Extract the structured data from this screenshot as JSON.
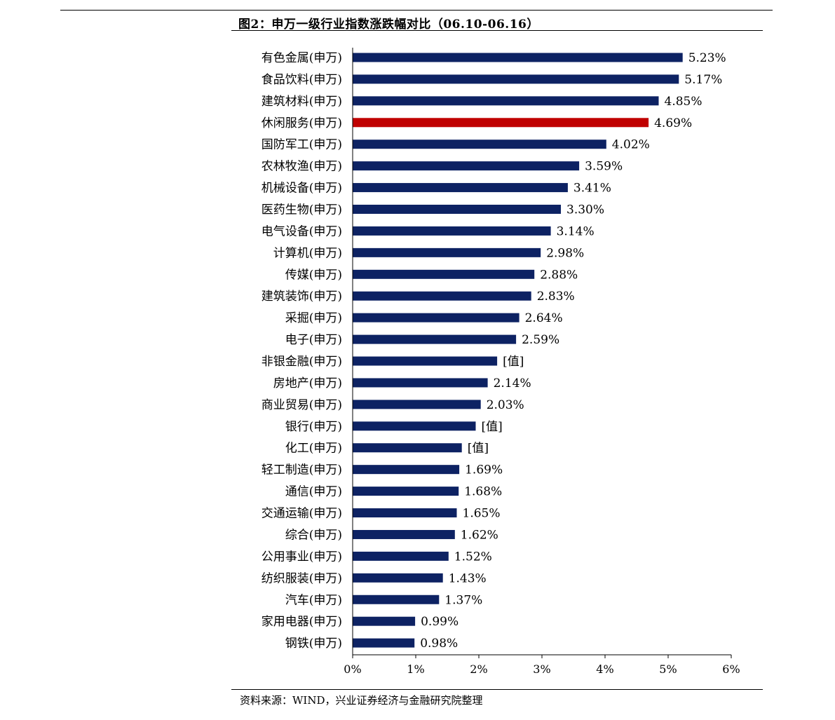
{
  "title": "图2：申万一级行业指数涨跌幅对比（06.10-06.16）",
  "source": "资料来源：WIND，兴业证券经济与金融研究院整理",
  "colors": {
    "bar": "#0d2263",
    "highlight": "#c00000"
  },
  "chart_data": {
    "type": "bar",
    "orientation": "horizontal",
    "title": "图2：申万一级行业指数涨跌幅对比（06.10-06.16）",
    "xlabel": "",
    "ylabel": "",
    "xlim": [
      0,
      6
    ],
    "x_ticks": [
      "0%",
      "1%",
      "2%",
      "3%",
      "4%",
      "5%",
      "6%"
    ],
    "grid": false,
    "highlight_category": "休闲服务(申万)",
    "categories": [
      "有色金属(申万)",
      "食品饮料(申万)",
      "建筑材料(申万)",
      "休闲服务(申万)",
      "国防军工(申万)",
      "农林牧渔(申万)",
      "机械设备(申万)",
      "医药生物(申万)",
      "电气设备(申万)",
      "计算机(申万)",
      "传媒(申万)",
      "建筑装饰(申万)",
      "采掘(申万)",
      "电子(申万)",
      "非银金融(申万)",
      "房地产(申万)",
      "商业贸易(申万)",
      "银行(申万)",
      "化工(申万)",
      "轻工制造(申万)",
      "通信(申万)",
      "交通运输(申万)",
      "综合(申万)",
      "公用事业(申万)",
      "纺织服装(申万)",
      "汽车(申万)",
      "家用电器(申万)",
      "钢铁(申万)"
    ],
    "values": [
      5.23,
      5.17,
      4.85,
      4.69,
      4.02,
      3.59,
      3.41,
      3.3,
      3.14,
      2.98,
      2.88,
      2.83,
      2.64,
      2.59,
      2.29,
      2.14,
      2.03,
      1.95,
      1.73,
      1.69,
      1.68,
      1.65,
      1.62,
      1.52,
      1.43,
      1.37,
      0.99,
      0.98
    ],
    "data_labels": [
      "5.23%",
      "5.17%",
      "4.85%",
      "4.69%",
      "4.02%",
      "3.59%",
      "3.41%",
      "3.30%",
      "3.14%",
      "2.98%",
      "2.88%",
      "2.83%",
      "2.64%",
      "2.59%",
      "[值]",
      "2.14%",
      "2.03%",
      "[值]",
      "[值]",
      "1.69%",
      "1.68%",
      "1.65%",
      "1.62%",
      "1.52%",
      "1.43%",
      "1.37%",
      "0.99%",
      "0.98%"
    ]
  }
}
